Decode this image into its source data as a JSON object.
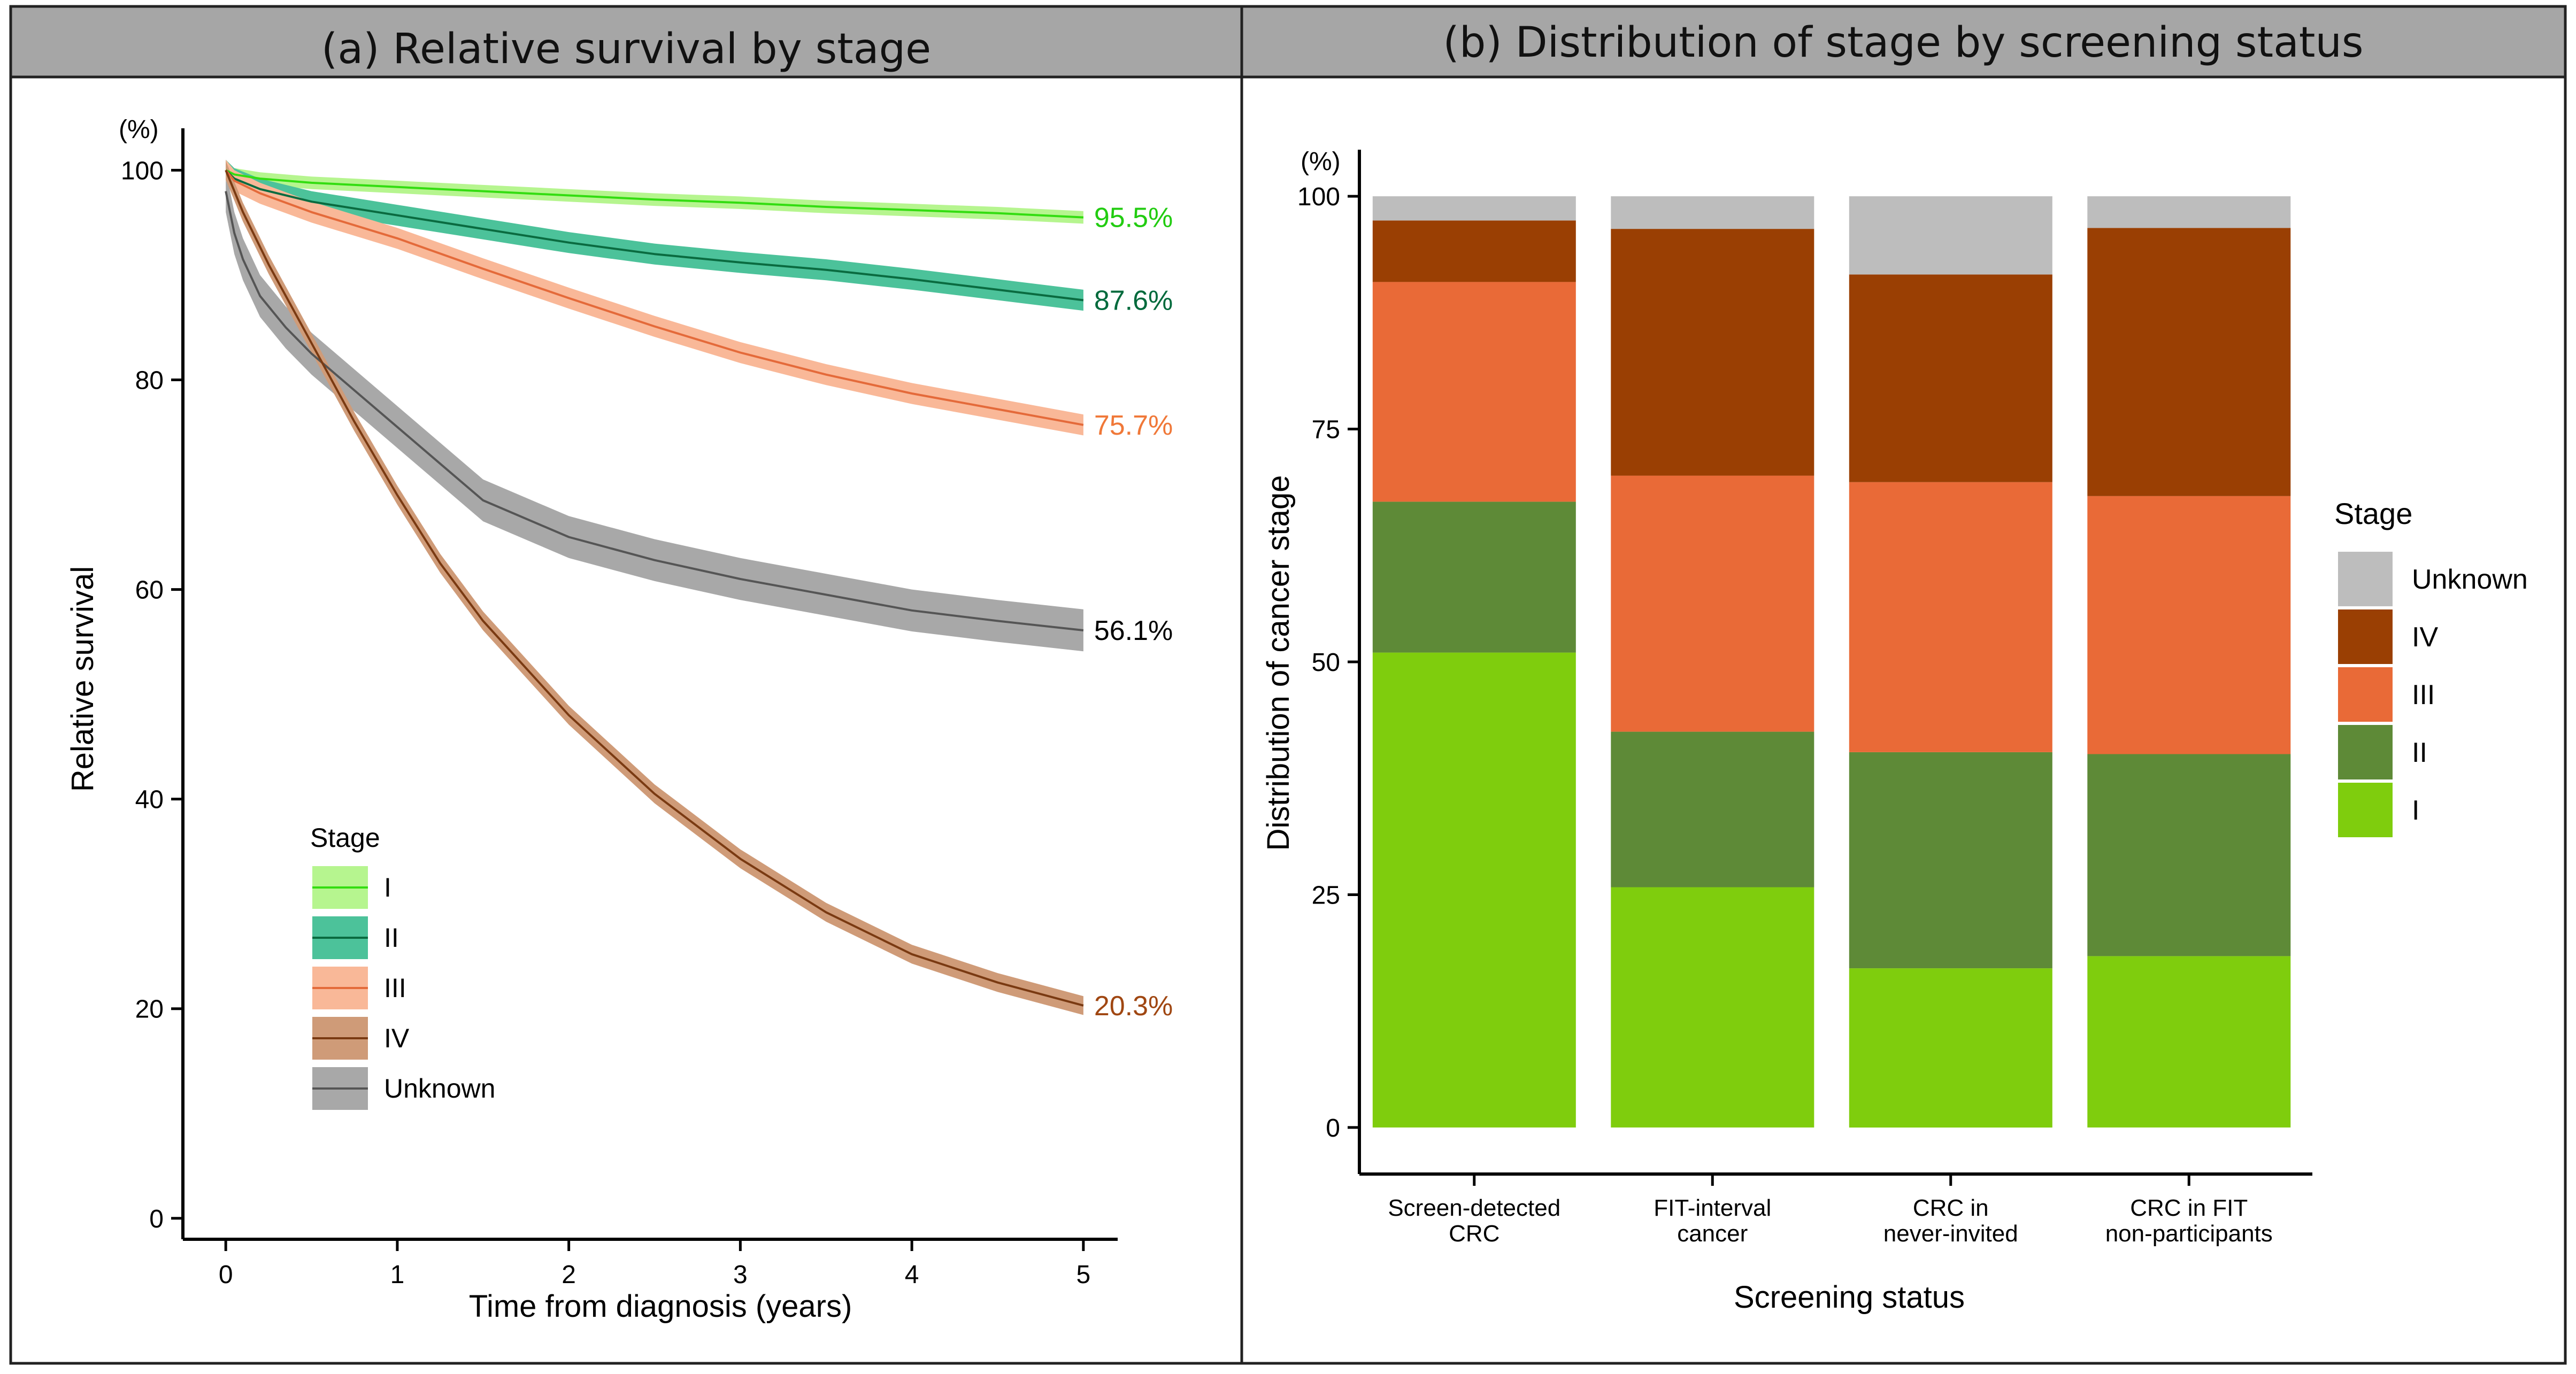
{
  "chart_data": [
    {
      "type": "line",
      "panel_title": "(a) Relative survival by stage",
      "xlabel": "Time from diagnosis (years)",
      "ylabel": "Relative survival",
      "y_unit": "(%)",
      "xlim": [
        -0.25,
        5.2
      ],
      "ylim": [
        -2,
        104
      ],
      "x_ticks": [
        0,
        1,
        2,
        3,
        4,
        5
      ],
      "y_ticks": [
        0,
        20,
        40,
        60,
        80,
        100
      ],
      "legend": {
        "title": "Stage",
        "position": "bottom-left"
      },
      "series": [
        {
          "name": "I",
          "line_color": "#33dd11",
          "band_color": "#b6f58f",
          "ci_halfwidth": 0.6,
          "end_label": "95.5%",
          "label_color": "#22cc11",
          "x": [
            0,
            0.05,
            0.2,
            0.5,
            1,
            1.5,
            2,
            2.5,
            3,
            3.5,
            4,
            4.5,
            5
          ],
          "y": [
            100,
            99.6,
            99.2,
            98.8,
            98.4,
            98.0,
            97.6,
            97.2,
            96.9,
            96.5,
            96.2,
            95.9,
            95.5
          ]
        },
        {
          "name": "II",
          "line_color": "#0a6b40",
          "band_color": "#4cc29a",
          "ci_halfwidth": 1.0,
          "end_label": "87.6%",
          "label_color": "#006a3c",
          "x": [
            0,
            0.05,
            0.2,
            0.5,
            1,
            1.5,
            2,
            2.5,
            3,
            3.5,
            4,
            4.5,
            5
          ],
          "y": [
            100,
            99.2,
            98.2,
            97.0,
            95.7,
            94.4,
            93.1,
            92.0,
            91.2,
            90.5,
            89.6,
            88.6,
            87.6
          ]
        },
        {
          "name": "III",
          "line_color": "#e46a3a",
          "band_color": "#f9b898",
          "ci_halfwidth": 1.0,
          "end_label": "75.7%",
          "label_color": "#f07838",
          "x": [
            0,
            0.05,
            0.2,
            0.5,
            1,
            1.5,
            2,
            2.5,
            3,
            3.5,
            4,
            4.5,
            5
          ],
          "y": [
            100,
            99.0,
            97.8,
            96.0,
            93.5,
            90.6,
            87.8,
            85.1,
            82.6,
            80.5,
            78.7,
            77.2,
            75.7
          ]
        },
        {
          "name": "IV",
          "line_color": "#7a3a12",
          "band_color": "#cf9b78",
          "ci_halfwidth": 0.9,
          "end_label": "20.3%",
          "label_color": "#a04712",
          "x": [
            0,
            0.1,
            0.25,
            0.5,
            0.75,
            1,
            1.25,
            1.5,
            2,
            2.5,
            3,
            3.5,
            4,
            4.5,
            5
          ],
          "y": [
            100,
            96.0,
            91.0,
            83.5,
            76.0,
            69.0,
            62.5,
            57.0,
            48.0,
            40.5,
            34.3,
            29.2,
            25.2,
            22.5,
            20.3
          ]
        },
        {
          "name": "Unknown",
          "line_color": "#555555",
          "band_color": "#a8a8a8",
          "ci_halfwidth": 2.0,
          "end_label": "56.1%",
          "label_color": "#000000",
          "x": [
            0,
            0.05,
            0.1,
            0.2,
            0.35,
            0.5,
            0.75,
            1,
            1.25,
            1.5,
            2,
            2.5,
            3,
            3.5,
            4,
            4.5,
            5
          ],
          "y": [
            98,
            94.0,
            91.5,
            88.0,
            85.0,
            82.5,
            79.0,
            75.5,
            72.0,
            68.5,
            65.0,
            62.8,
            61.0,
            59.5,
            58.0,
            57.0,
            56.1
          ]
        }
      ]
    },
    {
      "type": "bar",
      "stacked": true,
      "panel_title": "(b) Distribution of stage by screening status",
      "xlabel": "Screening status",
      "ylabel": "Distribution of cancer stage",
      "y_unit": "(%)",
      "ylim": [
        -5,
        105
      ],
      "y_ticks": [
        0,
        25,
        50,
        75,
        100
      ],
      "categories": [
        [
          "Screen-detected",
          "CRC"
        ],
        [
          "FIT-interval",
          "cancer"
        ],
        [
          "CRC in",
          "never-invited"
        ],
        [
          "CRC in FIT",
          "non-participants"
        ]
      ],
      "legend": {
        "title": "Stage",
        "position": "right",
        "order": [
          "Unknown",
          "IV",
          "III",
          "II",
          "I"
        ]
      },
      "series": [
        {
          "name": "I",
          "color": "#7fcd0d",
          "values": [
            51,
            25.8,
            17.1,
            18.4
          ]
        },
        {
          "name": "II",
          "color": "#5e8a37",
          "values": [
            16.2,
            16.7,
            23.2,
            21.7
          ]
        },
        {
          "name": "III",
          "color": "#e96a37",
          "values": [
            23.6,
            27.5,
            29.0,
            27.7
          ]
        },
        {
          "name": "IV",
          "color": "#9a3f03",
          "values": [
            6.6,
            26.5,
            22.3,
            28.8
          ]
        },
        {
          "name": "Unknown",
          "color": "#bdbdbd",
          "values": [
            2.6,
            3.5,
            8.4,
            3.4
          ]
        }
      ]
    }
  ]
}
